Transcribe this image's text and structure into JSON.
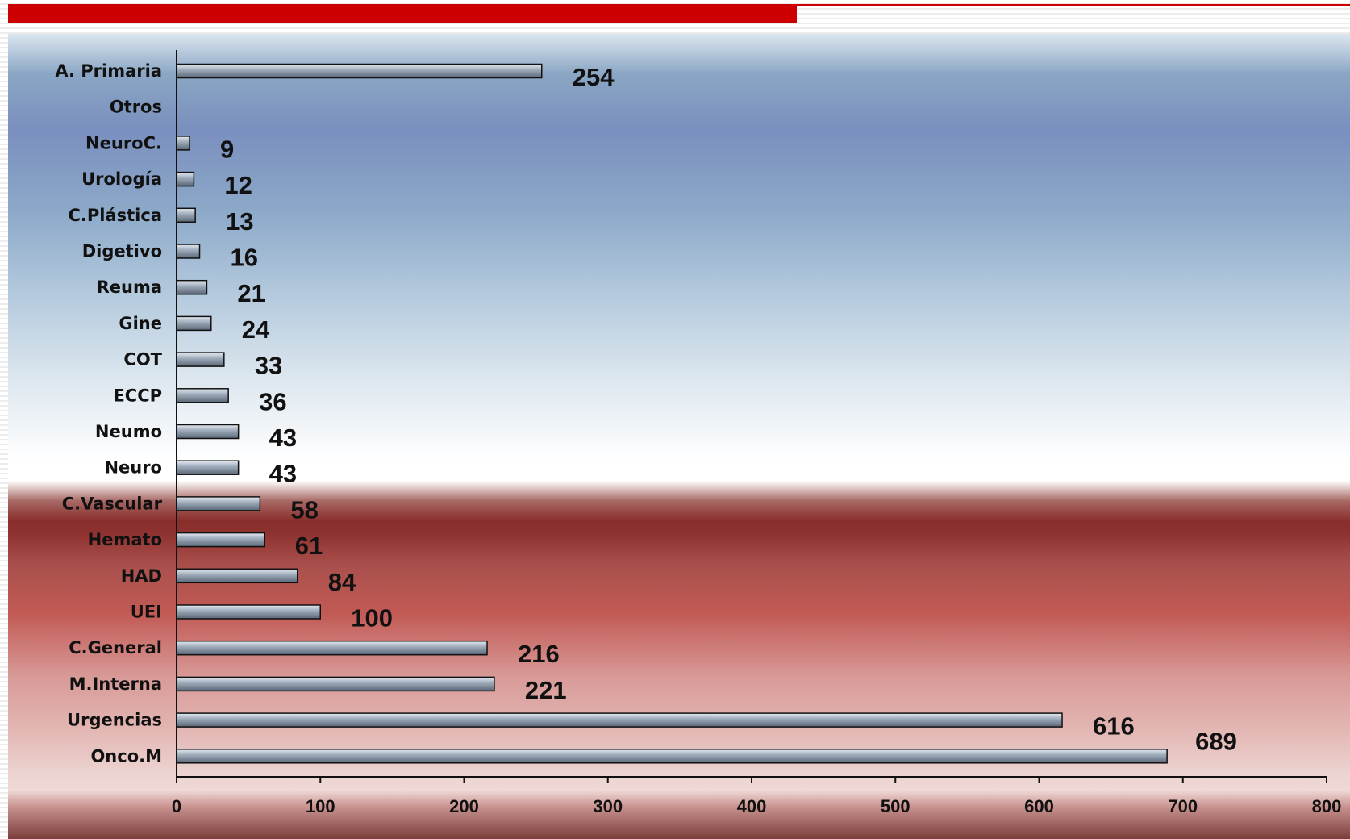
{
  "chart_data": {
    "type": "bar",
    "orientation": "horizontal",
    "categories": [
      "A. Primaria",
      "Otros",
      "NeuroC.",
      "Urología",
      "C.Plástica",
      "Digetivo",
      "Reuma",
      "Gine",
      "COT",
      "ECCP",
      "Neumo",
      "Neuro",
      "C.Vascular",
      "Hemato",
      "HAD",
      "UEI",
      "C.General",
      "M.Interna",
      "Urgencias",
      "Onco.M"
    ],
    "values": [
      254,
      null,
      9,
      12,
      13,
      16,
      21,
      24,
      33,
      36,
      43,
      43,
      58,
      61,
      84,
      100,
      216,
      221,
      616,
      689
    ],
    "value_labels": [
      "254",
      "",
      "9",
      "12",
      "13",
      "16",
      "21",
      "24",
      "33",
      "36",
      "43",
      "43",
      "58",
      "61",
      "84",
      "100",
      "216",
      "221",
      "616",
      "689"
    ],
    "xlim": [
      0,
      800
    ],
    "xticks": [
      0,
      100,
      200,
      300,
      400,
      500,
      600,
      700,
      800
    ],
    "xtick_labels": [
      "0",
      "100",
      "200",
      "300",
      "400",
      "500",
      "600",
      "700",
      "800"
    ],
    "title": "",
    "xlabel": "",
    "ylabel": "",
    "grid": false,
    "legend": "none",
    "bar_color": "#8e9bab"
  },
  "colors": {
    "header_accent": "#cc0000"
  }
}
